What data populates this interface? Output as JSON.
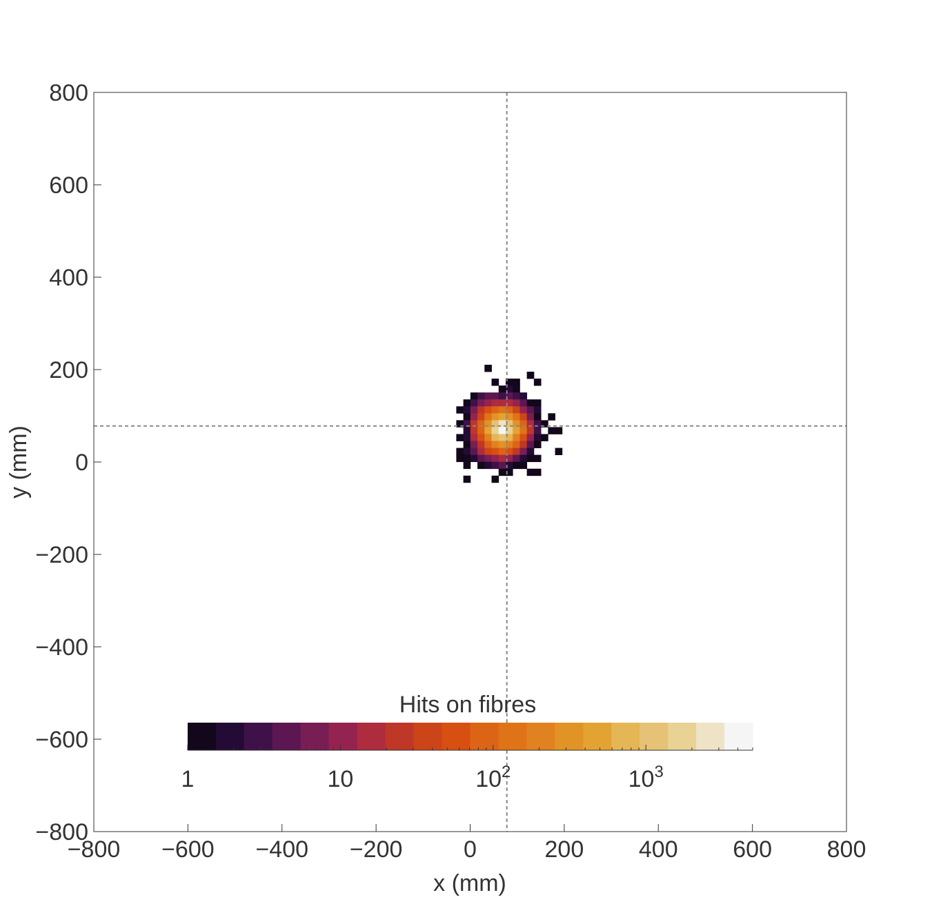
{
  "chart_data": {
    "type": "heatmap",
    "title": "",
    "xlabel": "x (mm)",
    "ylabel": "y (mm)",
    "xlim": [
      -800,
      800
    ],
    "ylim": [
      -800,
      800
    ],
    "x_ticks": [
      -800,
      -600,
      -400,
      -200,
      0,
      200,
      400,
      600,
      800
    ],
    "y_ticks": [
      -800,
      -600,
      -400,
      -200,
      0,
      200,
      400,
      600,
      800
    ],
    "x_tick_labels": [
      "−800",
      "−600",
      "−400",
      "−200",
      "0",
      "200",
      "400",
      "600",
      "800"
    ],
    "y_tick_labels": [
      "−800",
      "−600",
      "−400",
      "−200",
      "0",
      "200",
      "400",
      "600",
      "800"
    ],
    "bin_size_mm": 15,
    "crosshair": {
      "x": 78,
      "y": 78,
      "style": "dashed",
      "color": "#888888"
    },
    "grid": false,
    "colorbar": {
      "title": "Hits on fibres",
      "placement": "bottom-center-inside",
      "scale": "log",
      "range": [
        1,
        5000
      ],
      "tick_labels": [
        {
          "value": 1,
          "base": "1",
          "sup": ""
        },
        {
          "value": 10,
          "base": "10",
          "sup": ""
        },
        {
          "value": 100,
          "base": "10",
          "sup": "2"
        },
        {
          "value": 1000,
          "base": "10",
          "sup": "3"
        }
      ],
      "colors": [
        "#13071b",
        "#230b35",
        "#3f1149",
        "#5c1752",
        "#791e54",
        "#95234f",
        "#ad2c3e",
        "#bf3727",
        "#cc4518",
        "#d84f12",
        "#dc6416",
        "#df7318",
        "#e0821f",
        "#e19326",
        "#e3a333",
        "#e5b655",
        "#e5c275",
        "#e8d294",
        "#efe3c7",
        "#f5f5f5"
      ]
    },
    "bins": [
      {
        "x": 38,
        "y": 203,
        "value": 1
      },
      {
        "x": 53,
        "y": 173,
        "value": 1
      },
      {
        "x": 83,
        "y": 173,
        "value": 1
      },
      {
        "x": 98,
        "y": 173,
        "value": 1
      },
      {
        "x": 128,
        "y": 188,
        "value": 1
      },
      {
        "x": 143,
        "y": 173,
        "value": 1
      },
      {
        "x": 68,
        "y": 158,
        "value": 1
      },
      {
        "x": 83,
        "y": 158,
        "value": 2
      },
      {
        "x": 98,
        "y": 158,
        "value": 1
      },
      {
        "x": 8,
        "y": 143,
        "value": 1
      },
      {
        "x": 23,
        "y": 143,
        "value": 3
      },
      {
        "x": 38,
        "y": 143,
        "value": 4
      },
      {
        "x": 53,
        "y": 143,
        "value": 5
      },
      {
        "x": 68,
        "y": 143,
        "value": 3
      },
      {
        "x": 83,
        "y": 143,
        "value": 4
      },
      {
        "x": 98,
        "y": 143,
        "value": 3
      },
      {
        "x": 113,
        "y": 143,
        "value": 2
      },
      {
        "x": -7,
        "y": 128,
        "value": 1
      },
      {
        "x": 8,
        "y": 128,
        "value": 3
      },
      {
        "x": 23,
        "y": 128,
        "value": 6
      },
      {
        "x": 38,
        "y": 128,
        "value": 10
      },
      {
        "x": 53,
        "y": 128,
        "value": 14
      },
      {
        "x": 68,
        "y": 128,
        "value": 18
      },
      {
        "x": 83,
        "y": 128,
        "value": 14
      },
      {
        "x": 98,
        "y": 128,
        "value": 9
      },
      {
        "x": 113,
        "y": 128,
        "value": 4
      },
      {
        "x": 128,
        "y": 128,
        "value": 1
      },
      {
        "x": 143,
        "y": 128,
        "value": 1
      },
      {
        "x": -22,
        "y": 113,
        "value": 1
      },
      {
        "x": -7,
        "y": 113,
        "value": 2
      },
      {
        "x": 8,
        "y": 113,
        "value": 6
      },
      {
        "x": 23,
        "y": 113,
        "value": 20
      },
      {
        "x": 38,
        "y": 113,
        "value": 50
      },
      {
        "x": 53,
        "y": 113,
        "value": 90
      },
      {
        "x": 68,
        "y": 113,
        "value": 120
      },
      {
        "x": 83,
        "y": 113,
        "value": 100
      },
      {
        "x": 98,
        "y": 113,
        "value": 45
      },
      {
        "x": 113,
        "y": 113,
        "value": 12
      },
      {
        "x": 128,
        "y": 113,
        "value": 4
      },
      {
        "x": 143,
        "y": 113,
        "value": 2
      },
      {
        "x": -7,
        "y": 98,
        "value": 1
      },
      {
        "x": 8,
        "y": 98,
        "value": 10
      },
      {
        "x": 23,
        "y": 98,
        "value": 40
      },
      {
        "x": 38,
        "y": 98,
        "value": 150
      },
      {
        "x": 53,
        "y": 98,
        "value": 300
      },
      {
        "x": 68,
        "y": 98,
        "value": 400
      },
      {
        "x": 83,
        "y": 98,
        "value": 350
      },
      {
        "x": 98,
        "y": 98,
        "value": 150
      },
      {
        "x": 113,
        "y": 98,
        "value": 40
      },
      {
        "x": 128,
        "y": 98,
        "value": 8
      },
      {
        "x": 143,
        "y": 98,
        "value": 1
      },
      {
        "x": 173,
        "y": 98,
        "value": 1
      },
      {
        "x": -22,
        "y": 83,
        "value": 1
      },
      {
        "x": -7,
        "y": 83,
        "value": 3
      },
      {
        "x": 8,
        "y": 83,
        "value": 20
      },
      {
        "x": 23,
        "y": 83,
        "value": 80
      },
      {
        "x": 38,
        "y": 83,
        "value": 300
      },
      {
        "x": 53,
        "y": 83,
        "value": 1000
      },
      {
        "x": 68,
        "y": 83,
        "value": 2500
      },
      {
        "x": 83,
        "y": 83,
        "value": 1200
      },
      {
        "x": 98,
        "y": 83,
        "value": 350
      },
      {
        "x": 113,
        "y": 83,
        "value": 90
      },
      {
        "x": 128,
        "y": 83,
        "value": 15
      },
      {
        "x": 143,
        "y": 83,
        "value": 3
      },
      {
        "x": 158,
        "y": 83,
        "value": 1
      },
      {
        "x": -7,
        "y": 68,
        "value": 2
      },
      {
        "x": 8,
        "y": 68,
        "value": 25
      },
      {
        "x": 23,
        "y": 68,
        "value": 90
      },
      {
        "x": 38,
        "y": 68,
        "value": 400
      },
      {
        "x": 53,
        "y": 68,
        "value": 1500
      },
      {
        "x": 68,
        "y": 68,
        "value": 5000
      },
      {
        "x": 83,
        "y": 68,
        "value": 1800
      },
      {
        "x": 98,
        "y": 68,
        "value": 450
      },
      {
        "x": 113,
        "y": 68,
        "value": 110
      },
      {
        "x": 128,
        "y": 68,
        "value": 20
      },
      {
        "x": 143,
        "y": 68,
        "value": 3
      },
      {
        "x": 173,
        "y": 68,
        "value": 1
      },
      {
        "x": 188,
        "y": 68,
        "value": 1
      },
      {
        "x": -22,
        "y": 53,
        "value": 1
      },
      {
        "x": -7,
        "y": 53,
        "value": 2
      },
      {
        "x": 8,
        "y": 53,
        "value": 15
      },
      {
        "x": 23,
        "y": 53,
        "value": 60
      },
      {
        "x": 38,
        "y": 53,
        "value": 200
      },
      {
        "x": 53,
        "y": 53,
        "value": 700
      },
      {
        "x": 68,
        "y": 53,
        "value": 1200
      },
      {
        "x": 83,
        "y": 53,
        "value": 800
      },
      {
        "x": 98,
        "y": 53,
        "value": 250
      },
      {
        "x": 113,
        "y": 53,
        "value": 60
      },
      {
        "x": 128,
        "y": 53,
        "value": 10
      },
      {
        "x": 143,
        "y": 53,
        "value": 2
      },
      {
        "x": 158,
        "y": 53,
        "value": 1
      },
      {
        "x": -7,
        "y": 38,
        "value": 1
      },
      {
        "x": 8,
        "y": 38,
        "value": 6
      },
      {
        "x": 23,
        "y": 38,
        "value": 25
      },
      {
        "x": 38,
        "y": 38,
        "value": 90
      },
      {
        "x": 53,
        "y": 38,
        "value": 200
      },
      {
        "x": 68,
        "y": 38,
        "value": 300
      },
      {
        "x": 83,
        "y": 38,
        "value": 200
      },
      {
        "x": 98,
        "y": 38,
        "value": 80
      },
      {
        "x": 113,
        "y": 38,
        "value": 20
      },
      {
        "x": 128,
        "y": 38,
        "value": 5
      },
      {
        "x": 143,
        "y": 38,
        "value": 1
      },
      {
        "x": -22,
        "y": 23,
        "value": 1
      },
      {
        "x": -7,
        "y": 23,
        "value": 2
      },
      {
        "x": 8,
        "y": 23,
        "value": 5
      },
      {
        "x": 23,
        "y": 23,
        "value": 15
      },
      {
        "x": 38,
        "y": 23,
        "value": 40
      },
      {
        "x": 53,
        "y": 23,
        "value": 70
      },
      {
        "x": 68,
        "y": 23,
        "value": 90
      },
      {
        "x": 83,
        "y": 23,
        "value": 60
      },
      {
        "x": 98,
        "y": 23,
        "value": 25
      },
      {
        "x": 113,
        "y": 23,
        "value": 8
      },
      {
        "x": 128,
        "y": 23,
        "value": 2
      },
      {
        "x": 188,
        "y": 23,
        "value": 1
      },
      {
        "x": -22,
        "y": 8,
        "value": 1
      },
      {
        "x": -7,
        "y": 8,
        "value": 1
      },
      {
        "x": 8,
        "y": 8,
        "value": 2
      },
      {
        "x": 23,
        "y": 8,
        "value": 4
      },
      {
        "x": 38,
        "y": 8,
        "value": 8
      },
      {
        "x": 53,
        "y": 8,
        "value": 12
      },
      {
        "x": 68,
        "y": 8,
        "value": 15
      },
      {
        "x": 83,
        "y": 8,
        "value": 10
      },
      {
        "x": 98,
        "y": 8,
        "value": 5
      },
      {
        "x": 113,
        "y": 8,
        "value": 2
      },
      {
        "x": 128,
        "y": 8,
        "value": 1
      },
      {
        "x": 143,
        "y": 8,
        "value": 1
      },
      {
        "x": -7,
        "y": -7,
        "value": 1
      },
      {
        "x": 23,
        "y": -7,
        "value": 1
      },
      {
        "x": 38,
        "y": -7,
        "value": 2
      },
      {
        "x": 53,
        "y": -7,
        "value": 3
      },
      {
        "x": 68,
        "y": -7,
        "value": 4
      },
      {
        "x": 83,
        "y": -7,
        "value": 2
      },
      {
        "x": 98,
        "y": -7,
        "value": 1
      },
      {
        "x": 113,
        "y": -7,
        "value": 1
      },
      {
        "x": 68,
        "y": -22,
        "value": 1
      },
      {
        "x": 83,
        "y": -22,
        "value": 1
      },
      {
        "x": 128,
        "y": -22,
        "value": 1
      },
      {
        "x": 143,
        "y": -22,
        "value": 1
      },
      {
        "x": -7,
        "y": -37,
        "value": 1
      },
      {
        "x": 53,
        "y": -37,
        "value": 1
      }
    ]
  }
}
